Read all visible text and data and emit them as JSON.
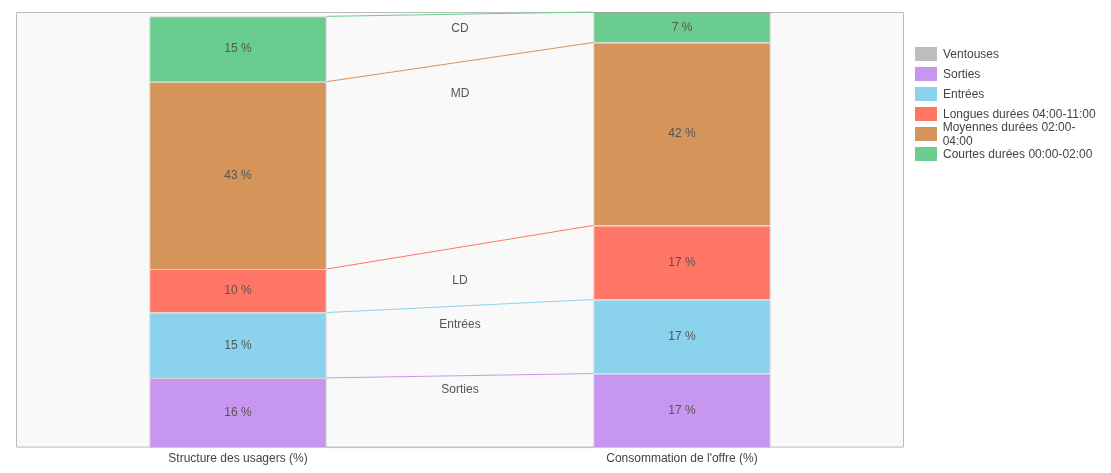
{
  "chart_data": {
    "type": "bar",
    "stacked": true,
    "categories": [
      "Structure des usagers (%)",
      "Consommation de l'offre (%)"
    ],
    "ylim": [
      0,
      100
    ],
    "tick_labels": "x",
    "grid": false,
    "legend": "top right",
    "series": [
      {
        "name": "Ventouses",
        "color": "#bdbdbd",
        "values": [
          0,
          0
        ],
        "value_labels": [
          null,
          null
        ]
      },
      {
        "name": "Sorties",
        "color": "#c797f0",
        "values": [
          16,
          17
        ],
        "value_labels": [
          "16 %",
          "17 %"
        ]
      },
      {
        "name": "Entrées",
        "color": "#8bd3ec",
        "values": [
          15,
          17
        ],
        "value_labels": [
          "15 %",
          "17 %"
        ]
      },
      {
        "name": "Longues durées 04:00-11:00",
        "color": "#ff7566",
        "values": [
          10,
          17
        ],
        "value_labels": [
          "10 %",
          "17 %"
        ]
      },
      {
        "name": "Moyennes durées 02:00-04:00",
        "color": "#d59459",
        "values": [
          43,
          42
        ],
        "value_labels": [
          "43 %",
          "42 %"
        ]
      },
      {
        "name": "Courtes durées 00:00-02:00",
        "color": "#6acd8f",
        "values": [
          15,
          7
        ],
        "value_labels": [
          "15 %",
          "7 %"
        ]
      }
    ],
    "annotations": [
      "CD",
      "MD",
      "LD",
      "Entrées",
      "Sorties"
    ]
  }
}
